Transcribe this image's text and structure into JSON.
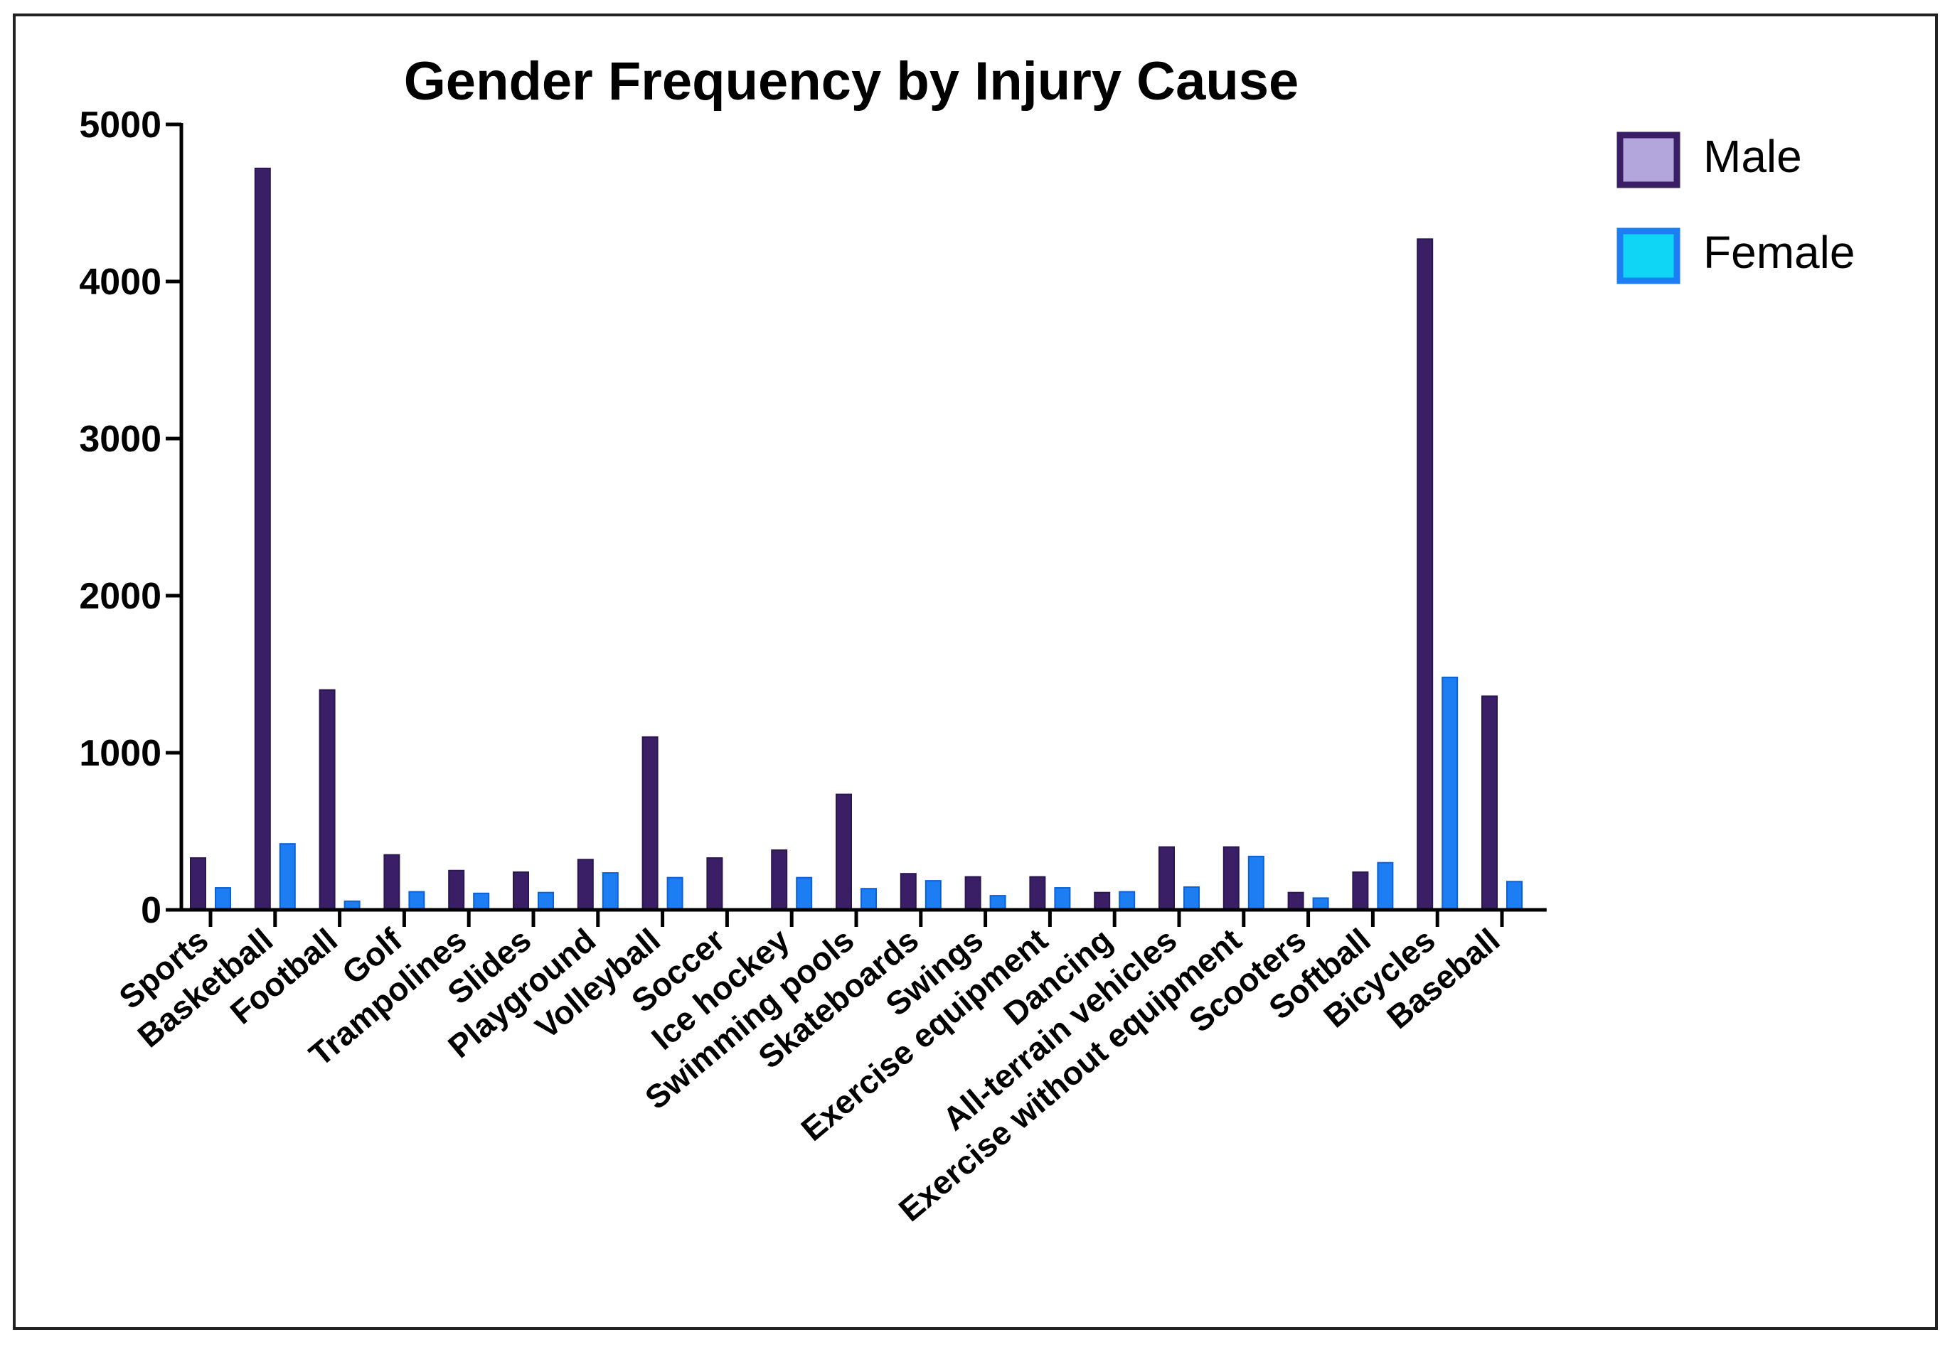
{
  "chart_data": {
    "type": "bar",
    "title": "Gender Frequency by Injury Cause",
    "xlabel": "",
    "ylabel": "",
    "ylim": [
      0,
      5000
    ],
    "yticks": [
      0,
      1000,
      2000,
      3000,
      4000,
      5000
    ],
    "grid": false,
    "legend_position": "top-right",
    "categories": [
      "Sports",
      "Basketball",
      "Football",
      "Golf",
      "Trampolines",
      "Slides",
      "Playground",
      "Volleyball",
      "Soccer",
      "Ice hockey",
      "Swimming pools",
      "Skateboards",
      "Swings",
      "Exercise equipment",
      "Dancing",
      "All-terrain vehicles",
      "Exercise without equipment",
      "Scooters",
      "Softball",
      "Bicycles",
      "Baseball"
    ],
    "series": [
      {
        "name": "Male",
        "fill": "#3b1f66",
        "edge": "#2a1650",
        "legend_fill": "#b3a6dd",
        "values": [
          330,
          4720,
          1400,
          350,
          250,
          240,
          320,
          1100,
          330,
          380,
          735,
          230,
          210,
          210,
          110,
          400,
          400,
          110,
          240,
          4270,
          1360
        ]
      },
      {
        "name": "Female",
        "fill": "#1d7df2",
        "edge": "#0b62d6",
        "legend_fill": "#10d6f5",
        "values": [
          140,
          420,
          55,
          115,
          105,
          110,
          235,
          205,
          0,
          205,
          135,
          185,
          90,
          140,
          115,
          145,
          340,
          75,
          300,
          1480,
          180
        ]
      }
    ]
  }
}
